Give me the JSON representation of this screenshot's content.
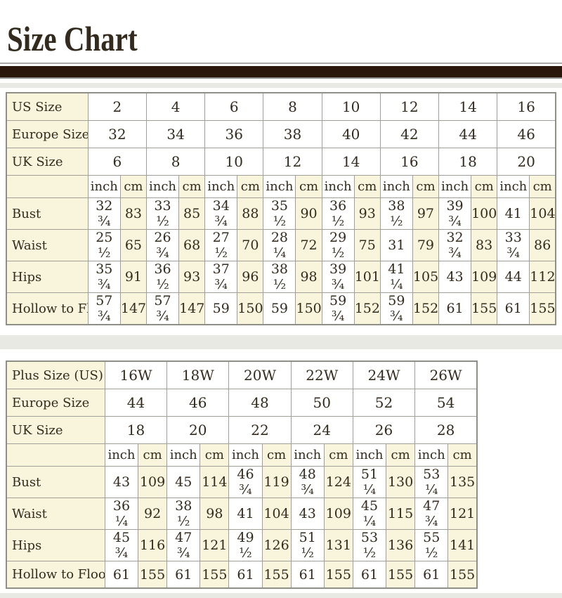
{
  "title": "Size Chart",
  "colors": {
    "cell_cream": "#f9f5dc",
    "cell_white": "#ffffff",
    "grid_line": "#a0a098",
    "title_bar_brown": "#2a160a",
    "text": "#332b1d",
    "background_band_gray": "#e9e9e4"
  },
  "chart_data": [
    {
      "type": "table",
      "name": "standard-size-table",
      "units": [
        "inch",
        "cm"
      ],
      "size_rows": [
        {
          "label": "US Size",
          "values": [
            "2",
            "4",
            "6",
            "8",
            "10",
            "12",
            "14",
            "16"
          ]
        },
        {
          "label": "Europe Size",
          "values": [
            "32",
            "34",
            "36",
            "38",
            "40",
            "42",
            "44",
            "46"
          ]
        },
        {
          "label": "UK Size",
          "values": [
            "6",
            "8",
            "10",
            "12",
            "14",
            "16",
            "18",
            "20"
          ]
        }
      ],
      "measure_rows": [
        {
          "label": "Bust",
          "values": [
            [
              "32 ¾",
              "83"
            ],
            [
              "33 ½",
              "85"
            ],
            [
              "34 ¾",
              "88"
            ],
            [
              "35 ½",
              "90"
            ],
            [
              "36 ½",
              "93"
            ],
            [
              "38 ½",
              "97"
            ],
            [
              "39 ¾",
              "100"
            ],
            [
              "41",
              "104"
            ]
          ]
        },
        {
          "label": "Waist",
          "values": [
            [
              "25 ½",
              "65"
            ],
            [
              "26 ¾",
              "68"
            ],
            [
              "27 ½",
              "70"
            ],
            [
              "28 ¼",
              "72"
            ],
            [
              "29 ½",
              "75"
            ],
            [
              "31",
              "79"
            ],
            [
              "32 ¾",
              "83"
            ],
            [
              "33 ¾",
              "86"
            ]
          ]
        },
        {
          "label": "Hips",
          "values": [
            [
              "35 ¾",
              "91"
            ],
            [
              "36 ½",
              "93"
            ],
            [
              "37 ¾",
              "96"
            ],
            [
              "38 ½",
              "98"
            ],
            [
              "39 ¾",
              "101"
            ],
            [
              "41 ¼",
              "105"
            ],
            [
              "43",
              "109"
            ],
            [
              "44",
              "112"
            ]
          ]
        },
        {
          "label": "Hollow to Floor",
          "values": [
            [
              "57 ¾",
              "147"
            ],
            [
              "57 ¾",
              "147"
            ],
            [
              "59",
              "150"
            ],
            [
              "59",
              "150"
            ],
            [
              "59 ¾",
              "152"
            ],
            [
              "59 ¾",
              "152"
            ],
            [
              "61",
              "155"
            ],
            [
              "61",
              "155"
            ]
          ]
        }
      ]
    },
    {
      "type": "table",
      "name": "plus-size-table",
      "units": [
        "inch",
        "cm"
      ],
      "size_rows": [
        {
          "label": "Plus Size (US)",
          "values": [
            "16W",
            "18W",
            "20W",
            "22W",
            "24W",
            "26W"
          ]
        },
        {
          "label": "Europe Size",
          "values": [
            "44",
            "46",
            "48",
            "50",
            "52",
            "54"
          ]
        },
        {
          "label": "UK Size",
          "values": [
            "18",
            "20",
            "22",
            "24",
            "26",
            "28"
          ]
        }
      ],
      "measure_rows": [
        {
          "label": "Bust",
          "values": [
            [
              "43",
              "109"
            ],
            [
              "45",
              "114"
            ],
            [
              "46 ¾",
              "119"
            ],
            [
              "48 ¾",
              "124"
            ],
            [
              "51 ¼",
              "130"
            ],
            [
              "53 ¼",
              "135"
            ]
          ]
        },
        {
          "label": "Waist",
          "values": [
            [
              "36 ¼",
              "92"
            ],
            [
              "38 ½",
              "98"
            ],
            [
              "41",
              "104"
            ],
            [
              "43",
              "109"
            ],
            [
              "45 ¼",
              "115"
            ],
            [
              "47 ¾",
              "121"
            ]
          ]
        },
        {
          "label": "Hips",
          "values": [
            [
              "45 ¾",
              "116"
            ],
            [
              "47 ¾",
              "121"
            ],
            [
              "49 ½",
              "126"
            ],
            [
              "51 ½",
              "131"
            ],
            [
              "53 ½",
              "136"
            ],
            [
              "55 ½",
              "141"
            ]
          ]
        },
        {
          "label": "Hollow to Floor",
          "values": [
            [
              "61",
              "155"
            ],
            [
              "61",
              "155"
            ],
            [
              "61",
              "155"
            ],
            [
              "61",
              "155"
            ],
            [
              "61",
              "155"
            ],
            [
              "61",
              "155"
            ]
          ]
        }
      ]
    }
  ]
}
